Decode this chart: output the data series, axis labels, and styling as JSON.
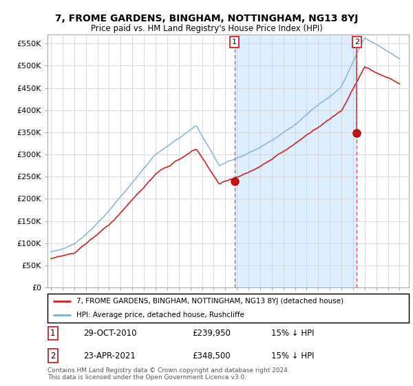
{
  "title": "7, FROME GARDENS, BINGHAM, NOTTINGHAM, NG13 8YJ",
  "subtitle": "Price paid vs. HM Land Registry's House Price Index (HPI)",
  "ylim": [
    0,
    570000
  ],
  "yticks": [
    0,
    50000,
    100000,
    150000,
    200000,
    250000,
    300000,
    350000,
    400000,
    450000,
    500000,
    550000
  ],
  "ytick_labels": [
    "£0",
    "£50K",
    "£100K",
    "£150K",
    "£200K",
    "£250K",
    "£300K",
    "£350K",
    "£400K",
    "£450K",
    "£500K",
    "£550K"
  ],
  "hpi_color": "#7ab0d4",
  "price_color": "#cc2222",
  "shade_color": "#ddeeff",
  "marker1_price": 239950,
  "marker2_price": 348500,
  "legend_line1": "7, FROME GARDENS, BINGHAM, NOTTINGHAM, NG13 8YJ (detached house)",
  "legend_line2": "HPI: Average price, detached house, Rushcliffe",
  "note_line1": "Contains HM Land Registry data © Crown copyright and database right 2024.",
  "note_line2": "This data is licensed under the Open Government Licence v3.0.",
  "table_row1": [
    "1",
    "29-OCT-2010",
    "£239,950",
    "15% ↓ HPI"
  ],
  "table_row2": [
    "2",
    "23-APR-2021",
    "£348,500",
    "15% ↓ HPI"
  ],
  "background_color": "#ffffff",
  "grid_color": "#cccccc",
  "xstart": 1995,
  "xend": 2025
}
